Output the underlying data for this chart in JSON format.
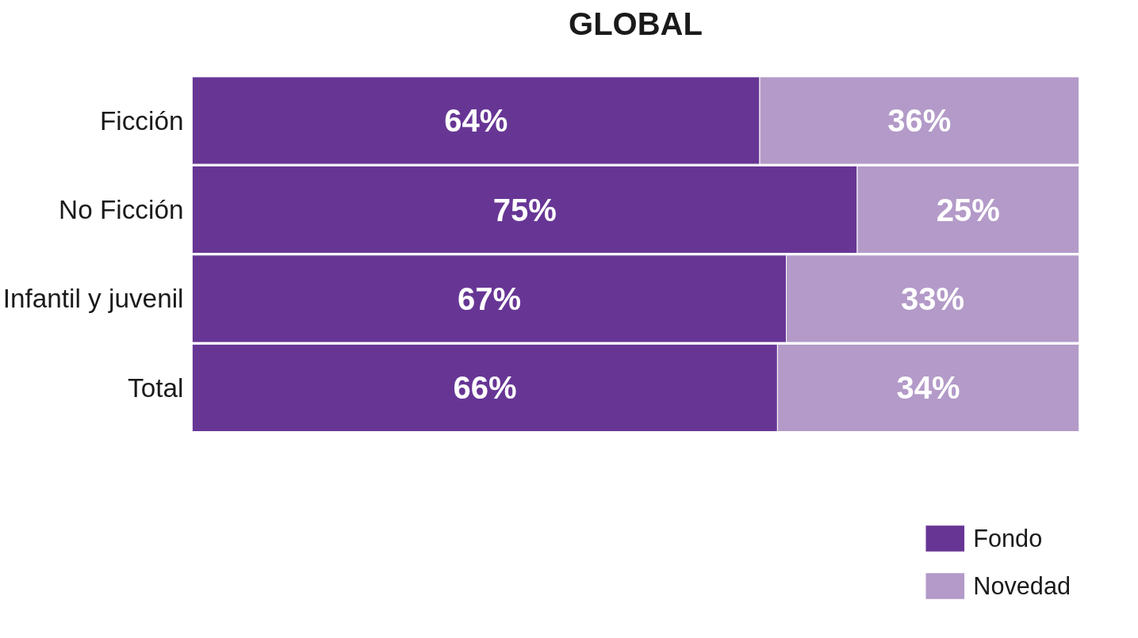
{
  "chart_data": {
    "type": "bar",
    "title": "GLOBAL",
    "orientation": "horizontal",
    "stacked": true,
    "categories": [
      "Ficción",
      "No Ficción",
      "Infantil y juvenil",
      "Total"
    ],
    "xlim": [
      0,
      100
    ],
    "tick_labels": "y",
    "legend": "bottom right",
    "series": [
      {
        "name": "Fondo",
        "color": "#673695",
        "values": [
          64,
          75,
          67,
          66
        ],
        "value_labels": [
          "64%",
          "75%",
          "67%",
          "66%"
        ]
      },
      {
        "name": "Novedad",
        "color": "#b39ac8",
        "values": [
          36,
          25,
          33,
          34
        ],
        "value_labels": [
          "36%",
          "25%",
          "33%",
          "34%"
        ]
      }
    ]
  }
}
